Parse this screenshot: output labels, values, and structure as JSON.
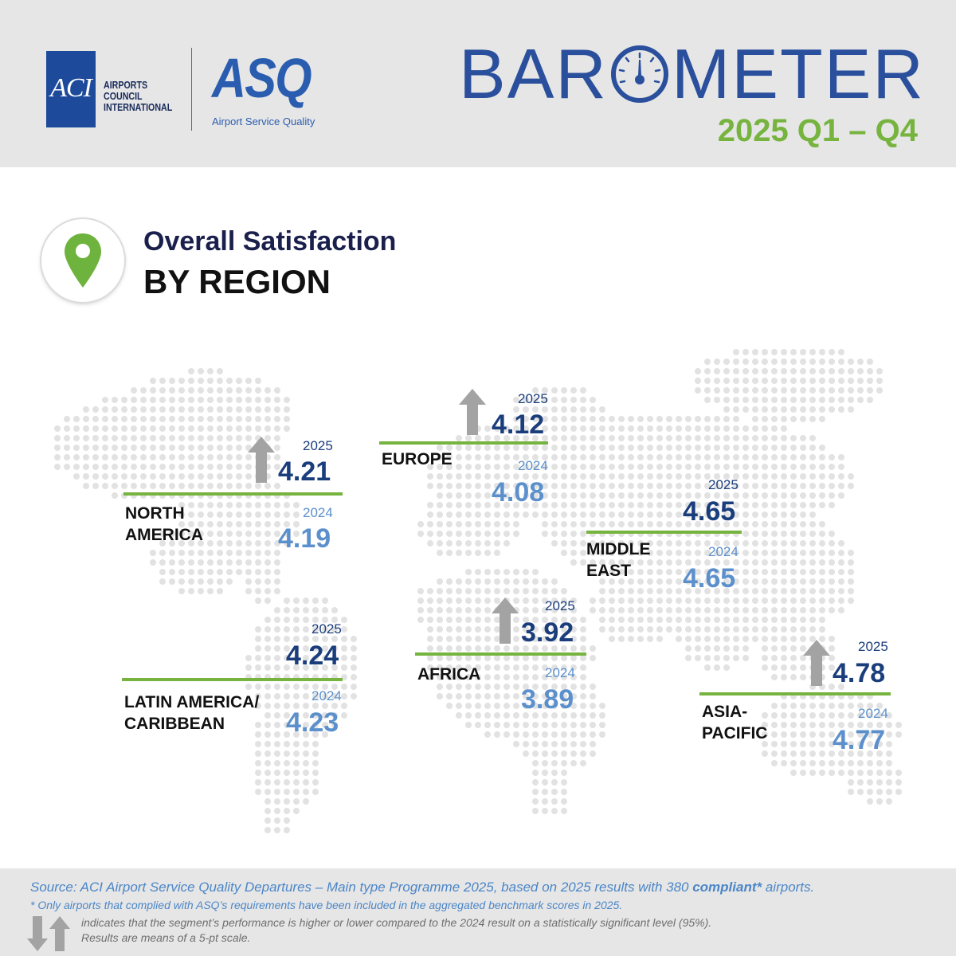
{
  "header": {
    "aci_logo": "ACI",
    "aci_name_lines": [
      "AIRPORTS",
      "COUNCIL",
      "INTERNATIONAL"
    ],
    "asq_logo": "ASQ",
    "asq_subtitle": "Airport Service Quality",
    "barometer_left": "BAR",
    "barometer_right": "METER",
    "period": "2025 Q1 – Q4"
  },
  "section": {
    "title_line1": "Overall Satisfaction",
    "title_line2": "BY REGION",
    "icon": "location-pin-icon"
  },
  "colors": {
    "accent_green": "#77b43f",
    "dark_blue": "#1a3d7c",
    "light_blue": "#5b90cc",
    "arrow_grey": "#a3a3a3"
  },
  "regions": [
    {
      "key": "north_america",
      "name_lines": [
        "NORTH",
        "AMERICA"
      ],
      "label_2025": "2025",
      "value_2025": "4.21",
      "label_2024": "2024",
      "value_2024": "4.19",
      "trend": "up"
    },
    {
      "key": "europe",
      "name_lines": [
        "EUROPE"
      ],
      "label_2025": "2025",
      "value_2025": "4.12",
      "label_2024": "2024",
      "value_2024": "4.08",
      "trend": "up"
    },
    {
      "key": "middle_east",
      "name_lines": [
        "MIDDLE",
        "EAST"
      ],
      "label_2025": "2025",
      "value_2025": "4.65",
      "label_2024": "2024",
      "value_2024": "4.65",
      "trend": "none"
    },
    {
      "key": "latin_america",
      "name_lines": [
        "LATIN AMERICA/",
        "CARIBBEAN"
      ],
      "label_2025": "2025",
      "value_2025": "4.24",
      "label_2024": "2024",
      "value_2024": "4.23",
      "trend": "none"
    },
    {
      "key": "africa",
      "name_lines": [
        "AFRICA"
      ],
      "label_2025": "2025",
      "value_2025": "3.92",
      "label_2024": "2024",
      "value_2024": "3.89",
      "trend": "up"
    },
    {
      "key": "asia_pacific",
      "name_lines": [
        "ASIA-",
        "PACIFIC"
      ],
      "label_2025": "2025",
      "value_2025": "4.78",
      "label_2024": "2024",
      "value_2024": "4.77",
      "trend": "up"
    }
  ],
  "footer": {
    "source_prefix": "Source: ACI Airport Service Quality Departures – Main type Programme 2025, based on 2025 results with 380 ",
    "source_bold": "compliant*",
    "source_suffix": " airports.",
    "note_compliant": "* Only airports that complied with ASQ’s requirements have been included in the aggregated benchmark scores in 2025.",
    "note_arrows": "indicates that the segment’s performance is higher or lower compared to the 2024 result on a statistically significant level (95%).",
    "note_scale": "Results are means of a 5-pt scale."
  }
}
